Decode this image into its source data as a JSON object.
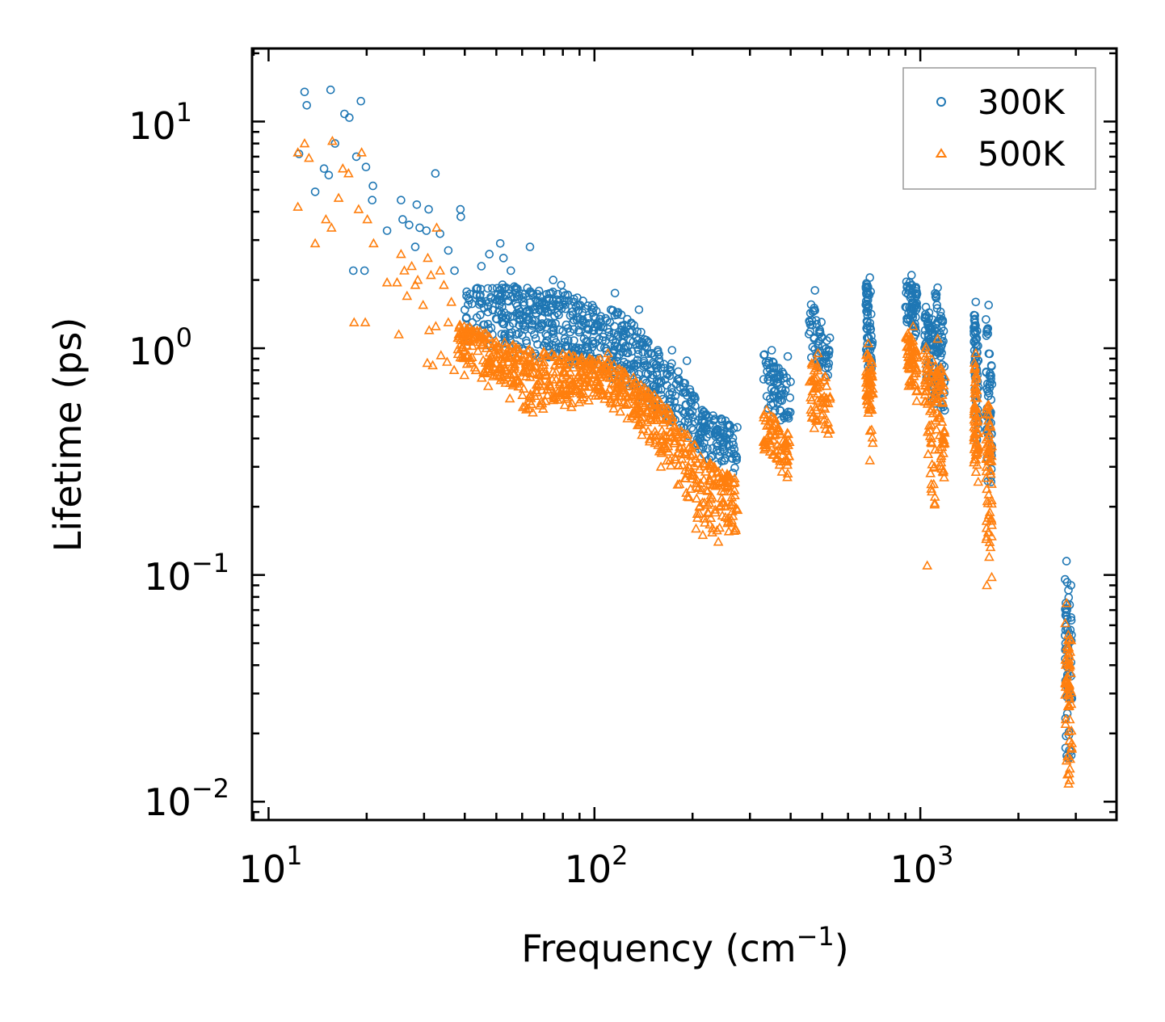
{
  "chart_data": {
    "type": "scatter",
    "xscale": "log",
    "yscale": "log",
    "xlabel": "Frequency (cm",
    "xlabel_sup": "−1",
    "xlabel_end": ")",
    "ylabel": "Lifetime (ps)",
    "xlim": [
      8.9,
      4000
    ],
    "ylim": [
      0.0083,
      21
    ],
    "xticks": [
      {
        "base": "10",
        "exp": "1",
        "value": 10
      },
      {
        "base": "10",
        "exp": "2",
        "value": 100
      },
      {
        "base": "10",
        "exp": "3",
        "value": 1000
      }
    ],
    "yticks": [
      {
        "base": "10",
        "exp": "1",
        "value": 10
      },
      {
        "base": "10",
        "exp": "0",
        "value": 1
      },
      {
        "base": "10",
        "exp": "−1",
        "value": 0.1
      },
      {
        "base": "10",
        "exp": "−2",
        "value": 0.01
      }
    ],
    "legend_position": "top-right",
    "series": [
      {
        "name": "300K",
        "marker": "circle",
        "color": "#1f77b4",
        "points": [
          [
            12.9,
            13.5
          ],
          [
            13.1,
            11.8
          ],
          [
            15.5,
            13.8
          ],
          [
            17.1,
            10.8
          ],
          [
            17.7,
            10.4
          ],
          [
            19.2,
            12.3
          ],
          [
            16.0,
            8.0
          ],
          [
            12.4,
            7.2
          ],
          [
            14.8,
            6.2
          ],
          [
            15.3,
            5.8
          ],
          [
            18.6,
            7.0
          ],
          [
            19.9,
            6.3
          ],
          [
            20.9,
            5.2
          ],
          [
            13.9,
            4.9
          ],
          [
            20.8,
            4.5
          ],
          [
            25.5,
            4.5
          ],
          [
            28.5,
            4.3
          ],
          [
            31.0,
            4.1
          ],
          [
            38.8,
            4.1
          ],
          [
            32.5,
            5.9
          ],
          [
            18.2,
            2.2
          ],
          [
            19.7,
            2.2
          ],
          [
            23.1,
            3.3
          ],
          [
            25.8,
            3.7
          ],
          [
            27.0,
            3.5
          ],
          [
            28.2,
            2.8
          ],
          [
            29.1,
            3.4
          ],
          [
            30.5,
            3.3
          ],
          [
            33.6,
            3.2
          ],
          [
            35.6,
            2.7
          ],
          [
            37.2,
            2.2
          ],
          [
            38.9,
            3.8
          ],
          [
            45.0,
            2.3
          ],
          [
            47.6,
            2.6
          ],
          [
            51.4,
            2.9
          ],
          [
            52.6,
            2.5
          ],
          [
            55.4,
            2.2
          ],
          [
            63.4,
            2.8
          ],
          [
            74.7,
            2.0
          ],
          [
            79.1,
            1.9
          ],
          [
            115.6,
            1.75
          ],
          [
            137.0,
            1.48
          ],
          [
            173.0,
            0.98
          ],
          [
            192.2,
            0.88
          ],
          [
            350,
            0.98
          ],
          [
            392,
            0.92
          ],
          [
            475,
            1.8
          ],
          [
            700,
            2.05
          ],
          [
            940,
            2.1
          ],
          [
            1130,
            1.85
          ],
          [
            1480,
            1.6
          ],
          [
            1620,
            1.55
          ],
          [
            2810,
            0.115
          ],
          [
            2900,
            0.09
          ]
        ],
        "bands": [
          {
            "x": [
              40,
              100
            ],
            "y_top": [
              2.0,
              1.7
            ],
            "y_bot": [
              1.05,
              0.8
            ]
          },
          {
            "x": [
              100,
              205
            ],
            "y_top": [
              1.7,
              0.6
            ],
            "y_bot": [
              0.8,
              0.36
            ]
          },
          {
            "x": [
              205,
              275
            ],
            "y_top": [
              0.55,
              0.45
            ],
            "y_bot": [
              0.34,
              0.27
            ]
          },
          {
            "x": [
              330,
              400
            ],
            "y_top": [
              0.95,
              0.72
            ],
            "y_bot": [
              0.55,
              0.44
            ]
          },
          {
            "x": [
              455,
              530
            ],
            "y_top": [
              1.7,
              1.1
            ],
            "y_bot": [
              0.85,
              0.7
            ]
          },
          {
            "x": [
              680,
              715
            ],
            "y_top": [
              2.0,
              1.7
            ],
            "y_bot": [
              0.95,
              0.6
            ]
          },
          {
            "x": [
              900,
              980
            ],
            "y_top": [
              2.05,
              1.85
            ],
            "y_bot": [
              1.3,
              1.0
            ]
          },
          {
            "x": [
              1030,
              1110
            ],
            "y_top": [
              1.6,
              1.3
            ],
            "y_bot": [
              0.75,
              0.5
            ]
          },
          {
            "x": [
              1110,
              1190
            ],
            "y_top": [
              1.85,
              1.2
            ],
            "y_bot": [
              0.6,
              0.45
            ]
          },
          {
            "x": [
              1460,
              1510
            ],
            "y_top": [
              1.6,
              1.0
            ],
            "y_bot": [
              0.45,
              0.35
            ]
          },
          {
            "x": [
              1590,
              1660
            ],
            "y_top": [
              1.5,
              0.8
            ],
            "y_bot": [
              0.25,
              0.2
            ]
          },
          {
            "x": [
              2780,
              2920
            ],
            "y_top": [
              0.105,
              0.08
            ],
            "y_bot": [
              0.016,
              0.014
            ]
          }
        ]
      },
      {
        "name": "500K",
        "marker": "triangle",
        "color": "#ff7f0e",
        "points": [
          [
            12.3,
            7.3
          ],
          [
            12.9,
            8.0
          ],
          [
            13.3,
            6.9
          ],
          [
            15.7,
            8.2
          ],
          [
            16.9,
            6.2
          ],
          [
            17.6,
            5.9
          ],
          [
            19.3,
            7.3
          ],
          [
            12.3,
            4.2
          ],
          [
            15.0,
            3.7
          ],
          [
            15.6,
            3.4
          ],
          [
            16.4,
            4.6
          ],
          [
            18.9,
            4.1
          ],
          [
            20.1,
            3.7
          ],
          [
            13.9,
            2.9
          ],
          [
            21.0,
            2.9
          ],
          [
            23.1,
            1.95
          ],
          [
            24.8,
            1.95
          ],
          [
            25.5,
            2.6
          ],
          [
            26.1,
            2.2
          ],
          [
            27.5,
            2.3
          ],
          [
            28.7,
            2.0
          ],
          [
            30.8,
            2.5
          ],
          [
            31.5,
            2.1
          ],
          [
            32.8,
            3.4
          ],
          [
            33.6,
            2.2
          ],
          [
            34.5,
            1.9
          ],
          [
            36.4,
            1.6
          ],
          [
            18.3,
            1.3
          ],
          [
            19.8,
            1.3
          ],
          [
            25.1,
            1.15
          ],
          [
            26.6,
            1.7
          ],
          [
            28.2,
            1.9
          ],
          [
            29.8,
            1.55
          ],
          [
            31.1,
            1.2
          ],
          [
            32.6,
            1.25
          ],
          [
            35.6,
            1.3
          ],
          [
            30.7,
            0.86
          ],
          [
            31.9,
            0.84
          ],
          [
            33.8,
            0.93
          ],
          [
            35.3,
            0.87
          ],
          [
            37.1,
            0.8
          ],
          [
            39.9,
            0.76
          ],
          [
            43.3,
            0.8
          ],
          [
            45.1,
            0.74
          ],
          [
            47.2,
            0.68
          ],
          [
            55.0,
            0.6
          ],
          [
            60.3,
            0.55
          ],
          [
            64.7,
            0.52
          ],
          [
            69.6,
            0.54
          ],
          [
            85.0,
            0.55
          ],
          [
            110,
            0.95
          ],
          [
            160,
            0.3
          ],
          [
            180,
            0.25
          ],
          [
            195,
            0.22
          ],
          [
            205,
            0.16
          ],
          [
            215,
            0.15
          ],
          [
            240,
            0.14
          ],
          [
            262,
            0.17
          ],
          [
            350,
            0.5
          ],
          [
            392,
            0.28
          ],
          [
            485,
            0.95
          ],
          [
            692,
            1.05
          ],
          [
            700,
            0.32
          ],
          [
            950,
            1.25
          ],
          [
            1050,
            0.11
          ],
          [
            1130,
            1.1
          ],
          [
            1480,
            0.95
          ],
          [
            1600,
            0.09
          ],
          [
            2810,
            0.075
          ],
          [
            2850,
            0.012
          ]
        ],
        "bands": [
          {
            "x": [
              38,
              60
            ],
            "y_top": [
              1.3,
              1.0
            ],
            "y_bot": [
              0.85,
              0.65
            ]
          },
          {
            "x": [
              60,
              110
            ],
            "y_top": [
              1.0,
              0.9
            ],
            "y_bot": [
              0.52,
              0.6
            ]
          },
          {
            "x": [
              110,
              205
            ],
            "y_top": [
              0.9,
              0.38
            ],
            "y_bot": [
              0.55,
              0.18
            ]
          },
          {
            "x": [
              205,
              275
            ],
            "y_top": [
              0.35,
              0.26
            ],
            "y_bot": [
              0.15,
              0.15
            ]
          },
          {
            "x": [
              330,
              400
            ],
            "y_top": [
              0.55,
              0.42
            ],
            "y_bot": [
              0.33,
              0.26
            ]
          },
          {
            "x": [
              455,
              530
            ],
            "y_top": [
              0.95,
              0.7
            ],
            "y_bot": [
              0.45,
              0.38
            ]
          },
          {
            "x": [
              680,
              715
            ],
            "y_top": [
              1.0,
              0.85
            ],
            "y_bot": [
              0.55,
              0.33
            ]
          },
          {
            "x": [
              900,
              980
            ],
            "y_top": [
              1.25,
              1.0
            ],
            "y_bot": [
              0.7,
              0.55
            ]
          },
          {
            "x": [
              1030,
              1110
            ],
            "y_top": [
              1.05,
              0.85
            ],
            "y_bot": [
              0.4,
              0.12
            ]
          },
          {
            "x": [
              1110,
              1190
            ],
            "y_top": [
              1.0,
              0.75
            ],
            "y_bot": [
              0.35,
              0.25
            ]
          },
          {
            "x": [
              1460,
              1510
            ],
            "y_top": [
              0.95,
              0.55
            ],
            "y_bot": [
              0.3,
              0.23
            ]
          },
          {
            "x": [
              1590,
              1660
            ],
            "y_top": [
              0.75,
              0.45
            ],
            "y_bot": [
              0.12,
              0.085
            ]
          },
          {
            "x": [
              2780,
              2920
            ],
            "y_top": [
              0.065,
              0.05
            ],
            "y_bot": [
              0.012,
              0.012
            ]
          }
        ]
      }
    ]
  }
}
